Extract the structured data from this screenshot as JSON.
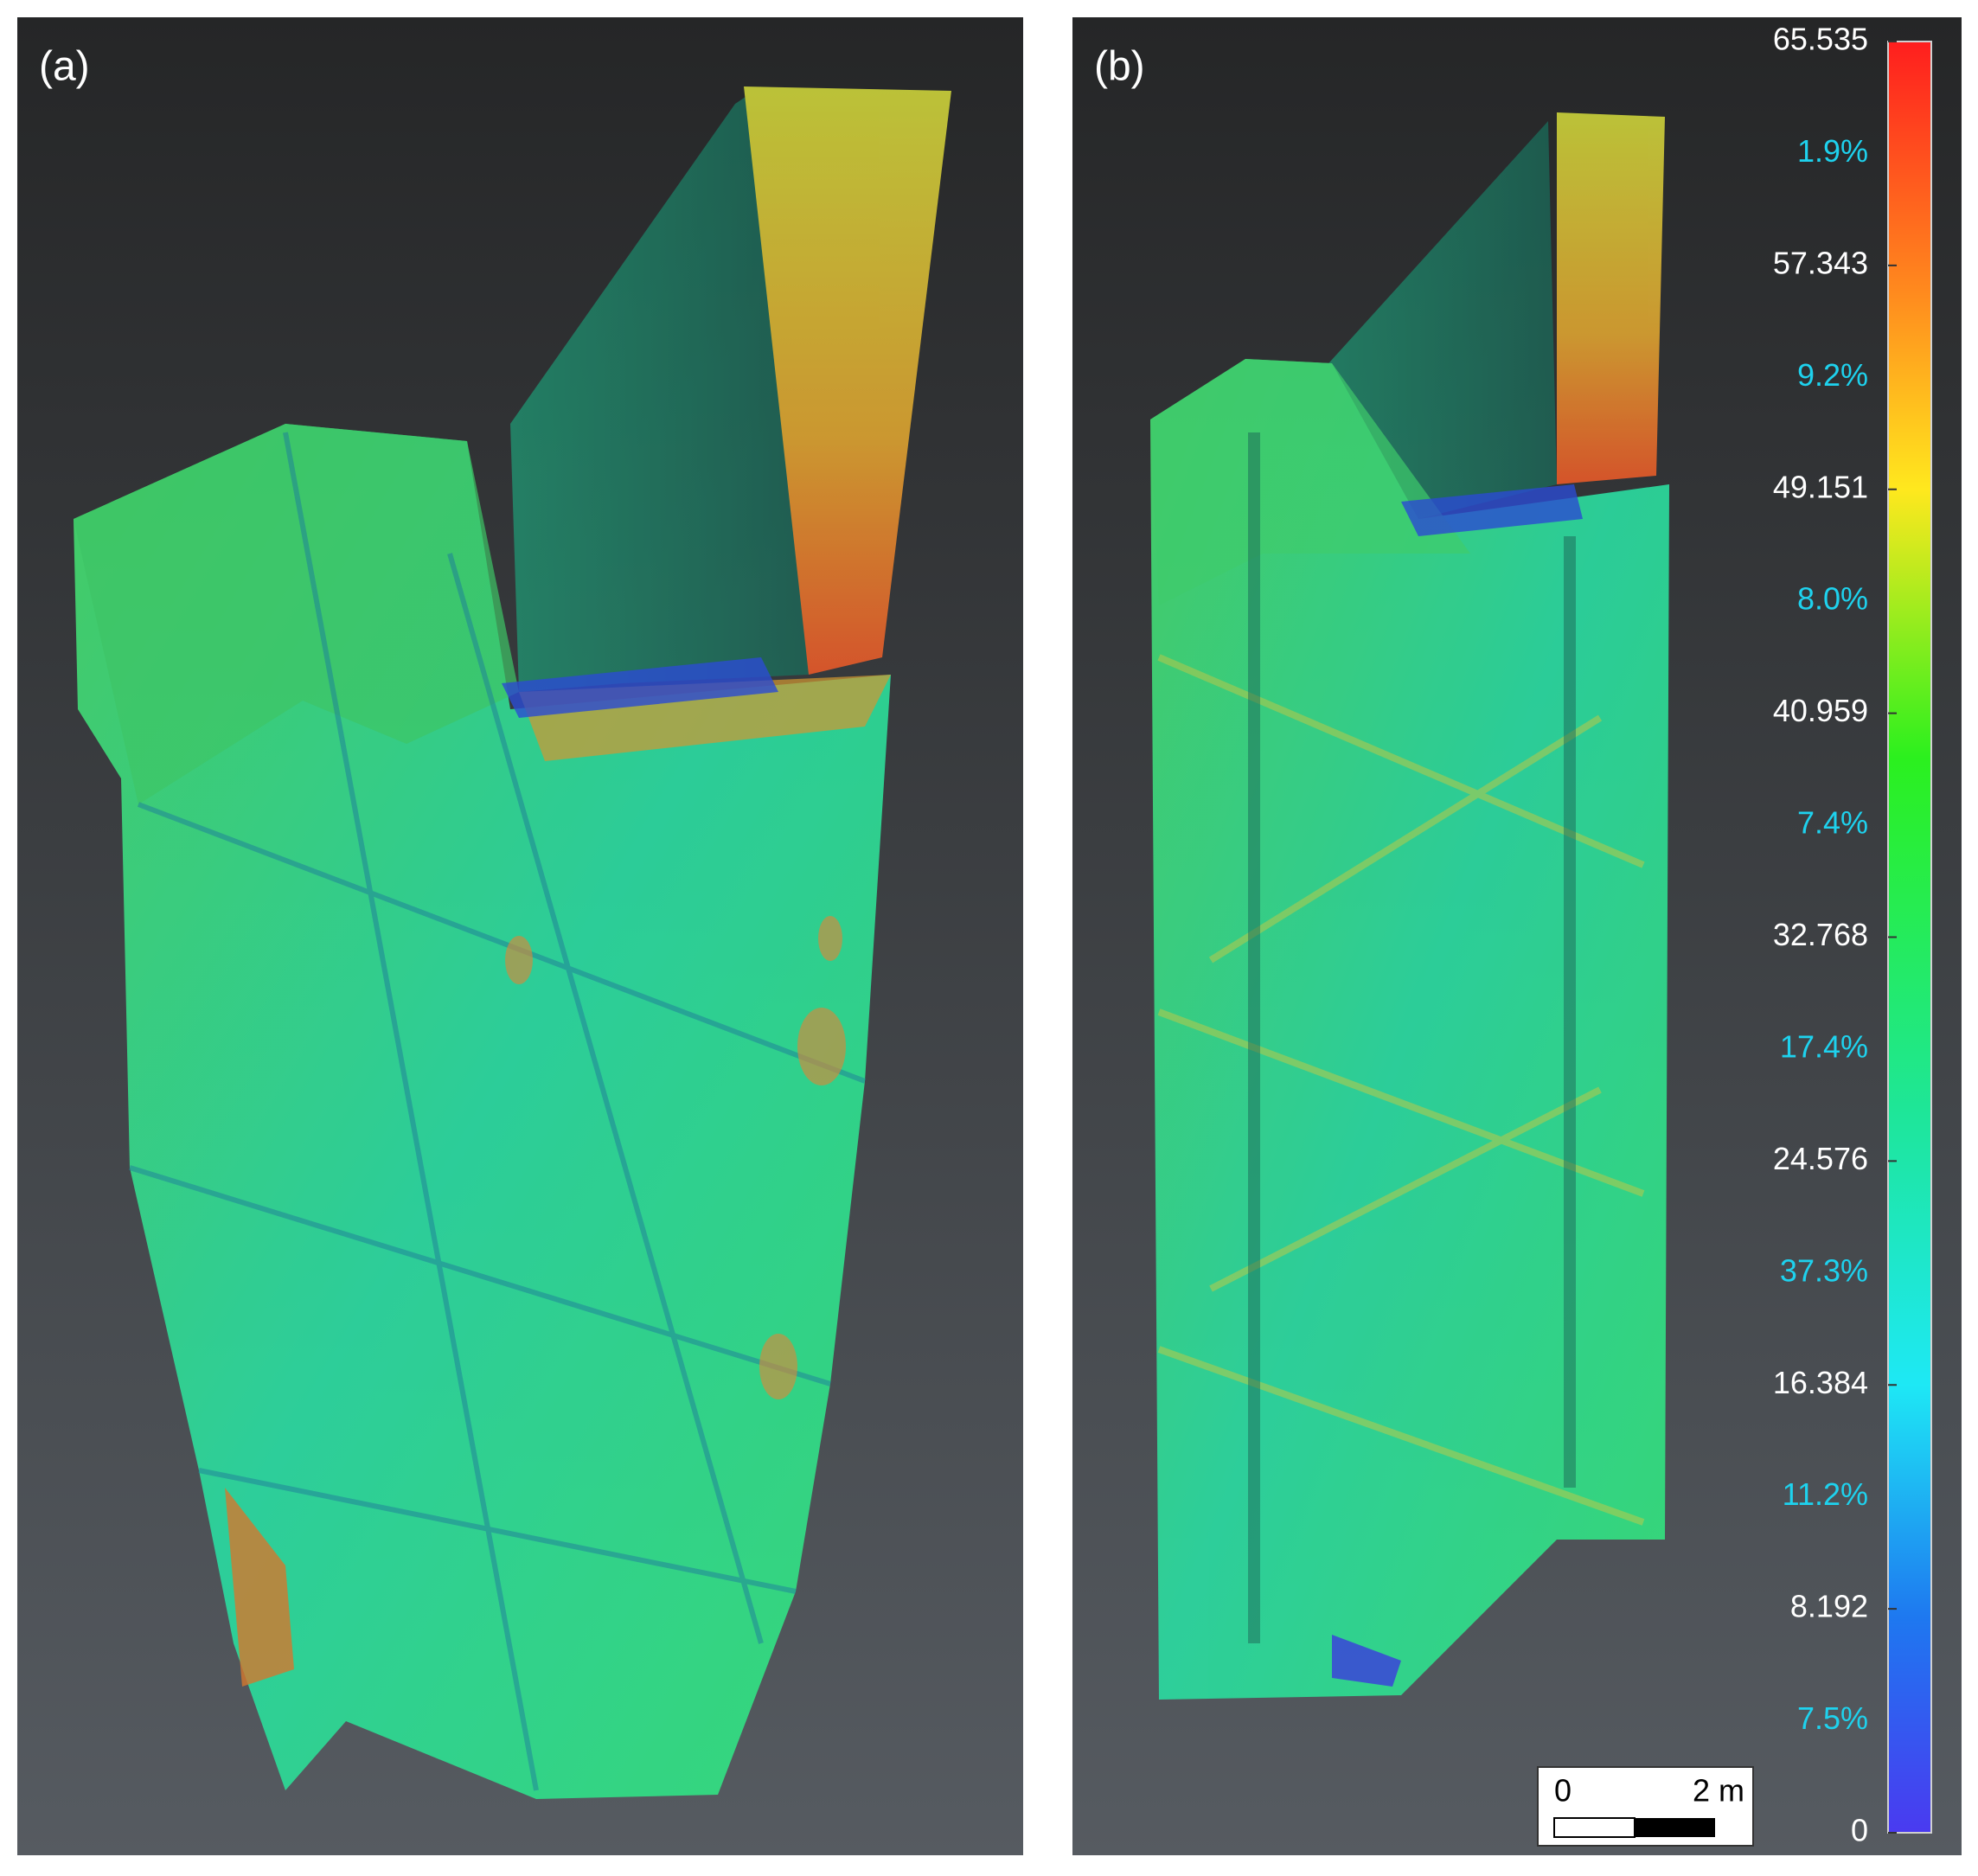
{
  "panels": [
    {
      "label": "(a)"
    },
    {
      "label": "(b)"
    }
  ],
  "colorbar": {
    "labels": [
      "65.535",
      "1.9%",
      "57.343",
      "9.2%",
      "49.151",
      "8.0%",
      "40.959",
      "7.4%",
      "32.768",
      "17.4%",
      "24.576",
      "37.3%",
      "16.384",
      "11.2%",
      "8.192",
      "7.5%",
      "0"
    ]
  },
  "scale_bar": {
    "start": "0",
    "end": "2 m"
  }
}
